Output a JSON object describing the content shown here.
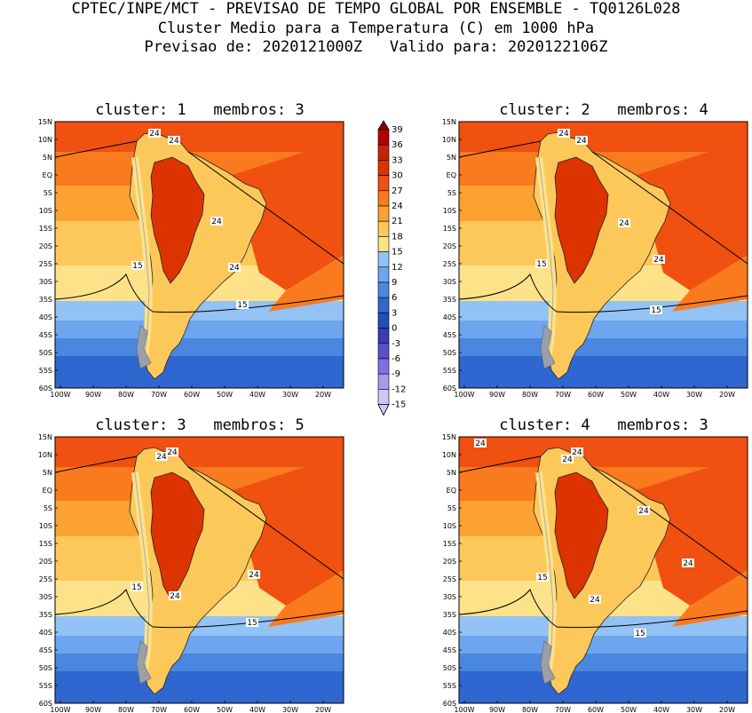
{
  "header": {
    "line1": "CPTEC/INPE/MCT - PREVISAO DE TEMPO GLOBAL POR ENSEMBLE - TQ0126L028",
    "line2": "Cluster Medio para a Temperatura (C) em 1000 hPa",
    "line3": "Previsao de: 2020121000Z   Valido para: 2020122106Z"
  },
  "axes": {
    "lat_labels": [
      "15N",
      "10N",
      "5N",
      "EQ",
      "5S",
      "10S",
      "15S",
      "20S",
      "25S",
      "30S",
      "35S",
      "40S",
      "45S",
      "50S",
      "55S",
      "60S"
    ],
    "lon_labels": [
      "100W",
      "90W",
      "80W",
      "70W",
      "60W",
      "50W",
      "40W",
      "30W",
      "20W"
    ]
  },
  "colorbar": {
    "levels": [
      "39",
      "36",
      "33",
      "30",
      "27",
      "24",
      "21",
      "18",
      "15",
      "12",
      "9",
      "6",
      "3",
      "0",
      "-3",
      "-6",
      "-9",
      "-12",
      "-15"
    ],
    "colors": [
      "#8b0000",
      "#b30000",
      "#cc2200",
      "#dd3300",
      "#f05010",
      "#fa7a1e",
      "#fca232",
      "#fdc85a",
      "#fde28a",
      "#93c2f4",
      "#6da6ee",
      "#4a87e0",
      "#2f66d0",
      "#1f4fc0",
      "#3a3ab8",
      "#5b4fd0",
      "#7e72e0",
      "#a79bef",
      "#cfc7f8"
    ]
  },
  "panels": [
    {
      "title": "cluster: 1   membros: 3",
      "labels": [
        "24",
        "24",
        "24",
        "24",
        "15",
        "15"
      ]
    },
    {
      "title": "cluster: 2   membros: 4",
      "labels": [
        "24",
        "24",
        "24",
        "24",
        "15",
        "15"
      ]
    },
    {
      "title": "cluster: 3   membros: 5",
      "labels": [
        "24",
        "24",
        "24",
        "24",
        "15",
        "15"
      ]
    },
    {
      "title": "cluster: 4   membros: 3",
      "labels": [
        "24",
        "24",
        "24",
        "24",
        "24",
        "24",
        "15",
        "15"
      ]
    }
  ]
}
